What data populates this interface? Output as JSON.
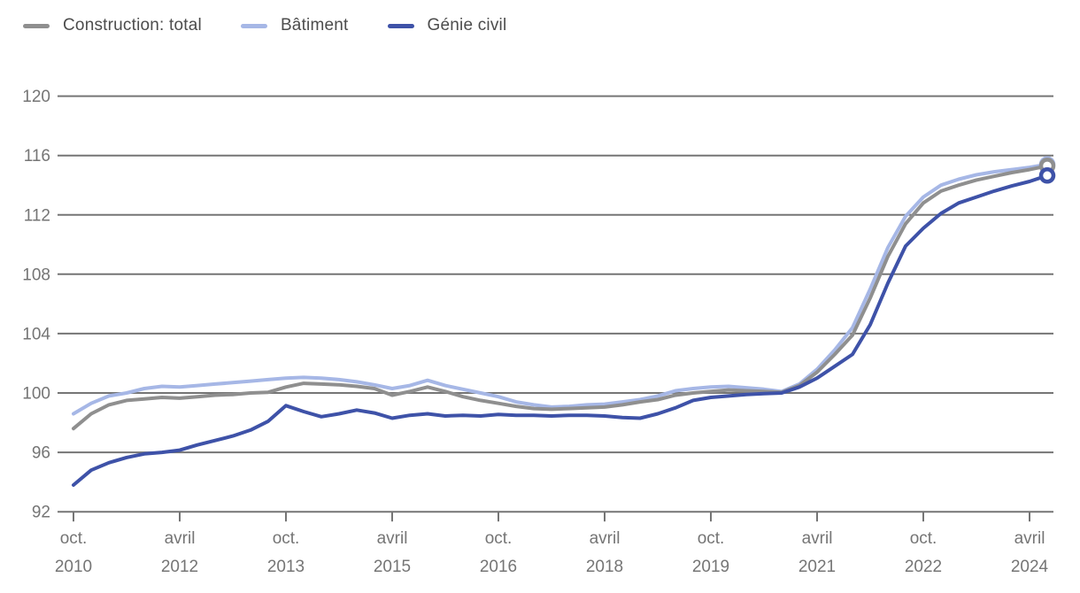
{
  "page": {
    "background": "#ffffff"
  },
  "legend": {
    "position": "top-left",
    "items": [
      {
        "id": "construction-total",
        "label": "Construction: total",
        "color": "#8f8f8f"
      },
      {
        "id": "batiment",
        "label": "Bâtiment",
        "color": "#a6b7e6"
      },
      {
        "id": "genie-civil",
        "label": "Génie civil",
        "color": "#3e52a8"
      }
    ]
  },
  "chart_data": {
    "type": "line",
    "title": "",
    "xlabel": "",
    "ylabel": "",
    "ylim": [
      92,
      120
    ],
    "yticks": [
      92,
      96,
      100,
      104,
      108,
      112,
      116,
      120
    ],
    "grid": true,
    "x_frequency": "quarterly",
    "x_tick_labels": [
      {
        "index": 0,
        "month": "oct.",
        "year": "2010"
      },
      {
        "index": 6,
        "month": "avril",
        "year": "2012"
      },
      {
        "index": 12,
        "month": "oct.",
        "year": "2013"
      },
      {
        "index": 18,
        "month": "avril",
        "year": "2015"
      },
      {
        "index": 24,
        "month": "oct.",
        "year": "2016"
      },
      {
        "index": 30,
        "month": "avril",
        "year": "2018"
      },
      {
        "index": 36,
        "month": "oct.",
        "year": "2019"
      },
      {
        "index": 42,
        "month": "avril",
        "year": "2021"
      },
      {
        "index": 48,
        "month": "oct.",
        "year": "2022"
      },
      {
        "index": 54,
        "month": "avril",
        "year": "2024"
      }
    ],
    "series": [
      {
        "name": "Construction: total",
        "color": "#8f8f8f",
        "end_marker": "open-circle",
        "values": [
          97.6,
          98.6,
          99.2,
          99.5,
          99.6,
          99.7,
          99.65,
          99.75,
          99.85,
          99.9,
          100.0,
          100.05,
          100.4,
          100.65,
          100.6,
          100.55,
          100.45,
          100.3,
          99.85,
          100.1,
          100.4,
          100.1,
          99.75,
          99.5,
          99.3,
          99.1,
          98.95,
          98.9,
          98.95,
          99.0,
          99.05,
          99.2,
          99.4,
          99.55,
          99.85,
          100.0,
          100.1,
          100.2,
          100.15,
          100.1,
          100.05,
          100.5,
          101.4,
          102.6,
          103.9,
          106.4,
          109.2,
          111.4,
          112.8,
          113.6,
          114.0,
          114.35,
          114.6,
          114.85,
          115.05,
          115.3
        ]
      },
      {
        "name": "Bâtiment",
        "color": "#a6b7e6",
        "end_marker": "open-circle",
        "values": [
          98.6,
          99.3,
          99.8,
          100.0,
          100.3,
          100.45,
          100.4,
          100.5,
          100.6,
          100.7,
          100.8,
          100.9,
          101.0,
          101.05,
          101.0,
          100.9,
          100.75,
          100.55,
          100.3,
          100.5,
          100.85,
          100.5,
          100.25,
          100.0,
          99.75,
          99.4,
          99.2,
          99.05,
          99.1,
          99.2,
          99.25,
          99.4,
          99.55,
          99.8,
          100.15,
          100.3,
          100.4,
          100.45,
          100.35,
          100.25,
          100.1,
          100.6,
          101.6,
          102.9,
          104.4,
          107.0,
          109.8,
          111.9,
          113.2,
          114.0,
          114.4,
          114.7,
          114.9,
          115.05,
          115.2,
          115.4
        ]
      },
      {
        "name": "Génie civil",
        "color": "#3e52a8",
        "end_marker": "open-circle",
        "values": [
          93.8,
          94.8,
          95.3,
          95.65,
          95.9,
          96.0,
          96.15,
          96.5,
          96.8,
          97.1,
          97.5,
          98.1,
          99.15,
          98.75,
          98.4,
          98.6,
          98.85,
          98.65,
          98.3,
          98.5,
          98.6,
          98.45,
          98.5,
          98.45,
          98.55,
          98.5,
          98.5,
          98.45,
          98.5,
          98.5,
          98.45,
          98.35,
          98.3,
          98.6,
          99.0,
          99.5,
          99.7,
          99.8,
          99.9,
          99.95,
          100.0,
          100.4,
          101.0,
          101.8,
          102.6,
          104.6,
          107.4,
          109.9,
          111.1,
          112.1,
          112.8,
          113.2,
          113.6,
          113.95,
          114.25,
          114.65
        ]
      }
    ],
    "style": {
      "gridline_color": "#757575",
      "tick_text_color": "#757575",
      "line_width": 4
    }
  }
}
